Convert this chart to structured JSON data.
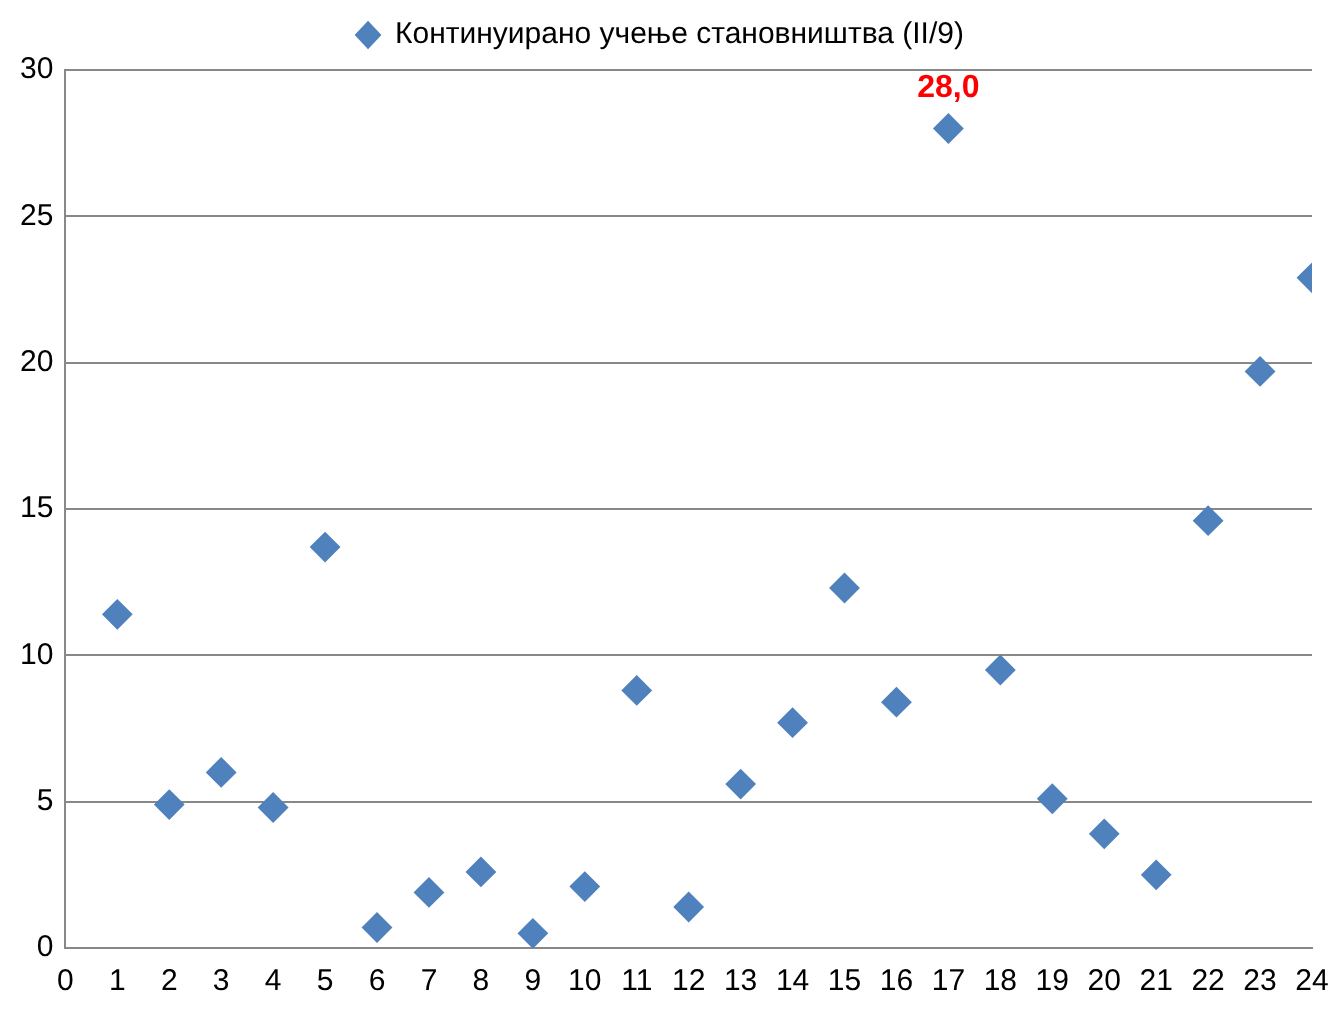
{
  "chart_data": {
    "type": "scatter",
    "x": [
      1,
      2,
      3,
      4,
      5,
      6,
      7,
      8,
      9,
      10,
      11,
      12,
      13,
      14,
      15,
      16,
      17,
      18,
      19,
      20,
      21,
      22,
      23,
      24
    ],
    "series": [
      {
        "name": "Континуирано учење становништва (II/9)",
        "color": "#4f81bd",
        "values": [
          11.4,
          4.9,
          6.0,
          4.8,
          13.7,
          0.7,
          1.9,
          2.6,
          0.5,
          2.1,
          8.8,
          1.4,
          5.6,
          7.7,
          12.3,
          8.4,
          28.0,
          9.5,
          5.1,
          3.9,
          2.5,
          14.6,
          19.7,
          22.9
        ],
        "value_labels": [
          null,
          null,
          null,
          null,
          null,
          null,
          null,
          null,
          null,
          null,
          null,
          null,
          null,
          null,
          null,
          null,
          "28,0",
          null,
          null,
          null,
          null,
          null,
          null,
          null
        ]
      }
    ],
    "xlim": [
      0,
      24
    ],
    "xticks": [
      0,
      1,
      2,
      3,
      4,
      5,
      6,
      7,
      8,
      9,
      10,
      11,
      12,
      13,
      14,
      15,
      16,
      17,
      18,
      19,
      20,
      21,
      22,
      23,
      24
    ],
    "ylim": [
      0,
      30
    ],
    "yticks": [
      0,
      5,
      10,
      15,
      20,
      25,
      30
    ],
    "grid": "y",
    "legend": "top",
    "marker": "diamond"
  }
}
